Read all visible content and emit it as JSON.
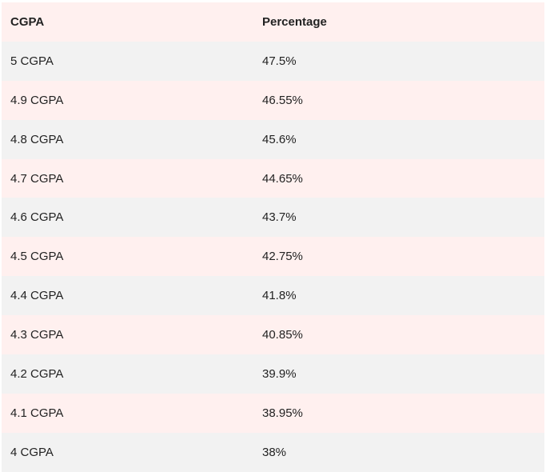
{
  "table": {
    "header": [
      "CGPA",
      "Percentage"
    ],
    "rows": [
      [
        "5 CGPA",
        "47.5%"
      ],
      [
        "4.9 CGPA",
        "46.55%"
      ],
      [
        "4.8 CGPA",
        "45.6%"
      ],
      [
        "4.7 CGPA",
        "44.65%"
      ],
      [
        "4.6 CGPA",
        "43.7%"
      ],
      [
        "4.5 CGPA",
        "42.75%"
      ],
      [
        "4.4 CGPA",
        "41.8%"
      ],
      [
        "4.3 CGPA",
        "40.85%"
      ],
      [
        "4.2 CGPA",
        "39.9%"
      ],
      [
        "4.1 CGPA",
        "38.95%"
      ],
      [
        "4 CGPA",
        "38%"
      ]
    ]
  }
}
